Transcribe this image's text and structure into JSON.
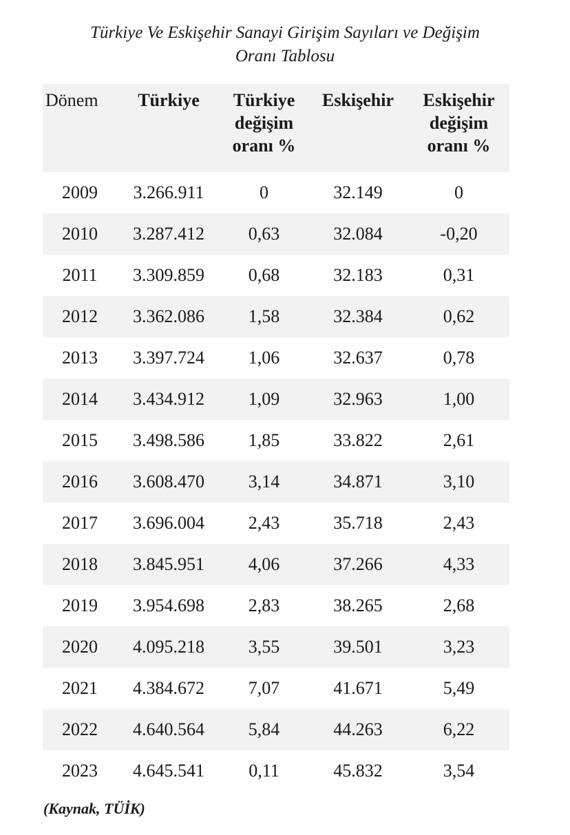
{
  "title": {
    "line1": "Türkiye Ve Eskişehir Sanayi Girişim Sayıları ve Değişim",
    "line2": "Oranı Tablosu"
  },
  "table": {
    "headers": [
      "Dönem",
      "Türkiye",
      "Türkiye değişim oranı %",
      "Eskişehir",
      "Eskişehir değişim oranı %"
    ],
    "rows": [
      [
        "2009",
        "3.266.911",
        "0",
        "32.149",
        "0"
      ],
      [
        "2010",
        "3.287.412",
        "0,63",
        "32.084",
        "-0,20"
      ],
      [
        "2011",
        "3.309.859",
        "0,68",
        "32.183",
        "0,31"
      ],
      [
        "2012",
        "3.362.086",
        "1,58",
        "32.384",
        "0,62"
      ],
      [
        "2013",
        "3.397.724",
        "1,06",
        "32.637",
        "0,78"
      ],
      [
        "2014",
        "3.434.912",
        "1,09",
        "32.963",
        "1,00"
      ],
      [
        "2015",
        "3.498.586",
        "1,85",
        "33.822",
        "2,61"
      ],
      [
        "2016",
        "3.608.470",
        "3,14",
        "34.871",
        "3,10"
      ],
      [
        "2017",
        "3.696.004",
        "2,43",
        "35.718",
        "2,43"
      ],
      [
        "2018",
        "3.845.951",
        "4,06",
        "37.266",
        "4,33"
      ],
      [
        "2019",
        "3.954.698",
        "2,83",
        "38.265",
        "2,68"
      ],
      [
        "2020",
        "4.095.218",
        "3,55",
        "39.501",
        "3,23"
      ],
      [
        "2021",
        "4.384.672",
        "7,07",
        "41.671",
        "5,49"
      ],
      [
        "2022",
        "4.640.564",
        "5,84",
        "44.263",
        "6,22"
      ],
      [
        "2023",
        "4.645.541",
        "0,11",
        "45.832",
        "3,54"
      ]
    ]
  },
  "source": "(Kaynak, TÜİK)"
}
